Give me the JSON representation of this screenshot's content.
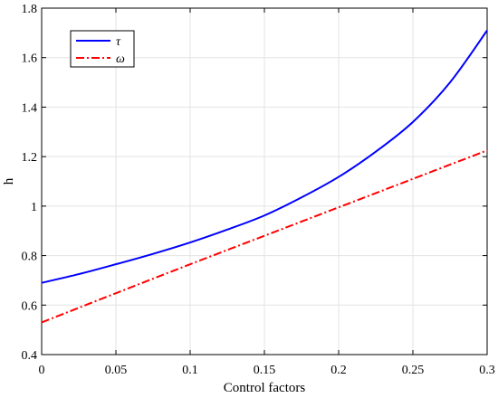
{
  "chart_data": {
    "type": "line",
    "title": "",
    "xlabel": "Control factors",
    "ylabel": "h",
    "xlim": [
      0,
      0.3
    ],
    "ylim": [
      0.4,
      1.8
    ],
    "xticks": [
      0,
      0.05,
      0.1,
      0.15,
      0.2,
      0.25,
      0.3
    ],
    "xtick_labels": [
      "0",
      "0.05",
      "0.1",
      "0.15",
      "0.2",
      "0.25",
      "0.3"
    ],
    "yticks": [
      0.4,
      0.6,
      0.8,
      1.0,
      1.2,
      1.4,
      1.6,
      1.8
    ],
    "ytick_labels": [
      "0.4",
      "0.6",
      "0.8",
      "1",
      "1.2",
      "1.4",
      "1.6",
      "1.8"
    ],
    "grid": true,
    "legend_position": "top-left",
    "series": [
      {
        "name": "τ",
        "color": "#0000ff",
        "style": "solid",
        "x": [
          0,
          0.025,
          0.05,
          0.075,
          0.1,
          0.125,
          0.15,
          0.175,
          0.2,
          0.225,
          0.25,
          0.275,
          0.3
        ],
        "y": [
          0.69,
          0.725,
          0.765,
          0.807,
          0.853,
          0.905,
          0.962,
          1.035,
          1.118,
          1.22,
          1.34,
          1.5,
          1.71
        ]
      },
      {
        "name": "ω",
        "color": "#ff0000",
        "style": "dashdot",
        "x": [
          0,
          0.05,
          0.1,
          0.15,
          0.2,
          0.25,
          0.3
        ],
        "y": [
          0.53,
          0.648,
          0.765,
          0.88,
          0.995,
          1.11,
          1.225
        ]
      }
    ]
  }
}
